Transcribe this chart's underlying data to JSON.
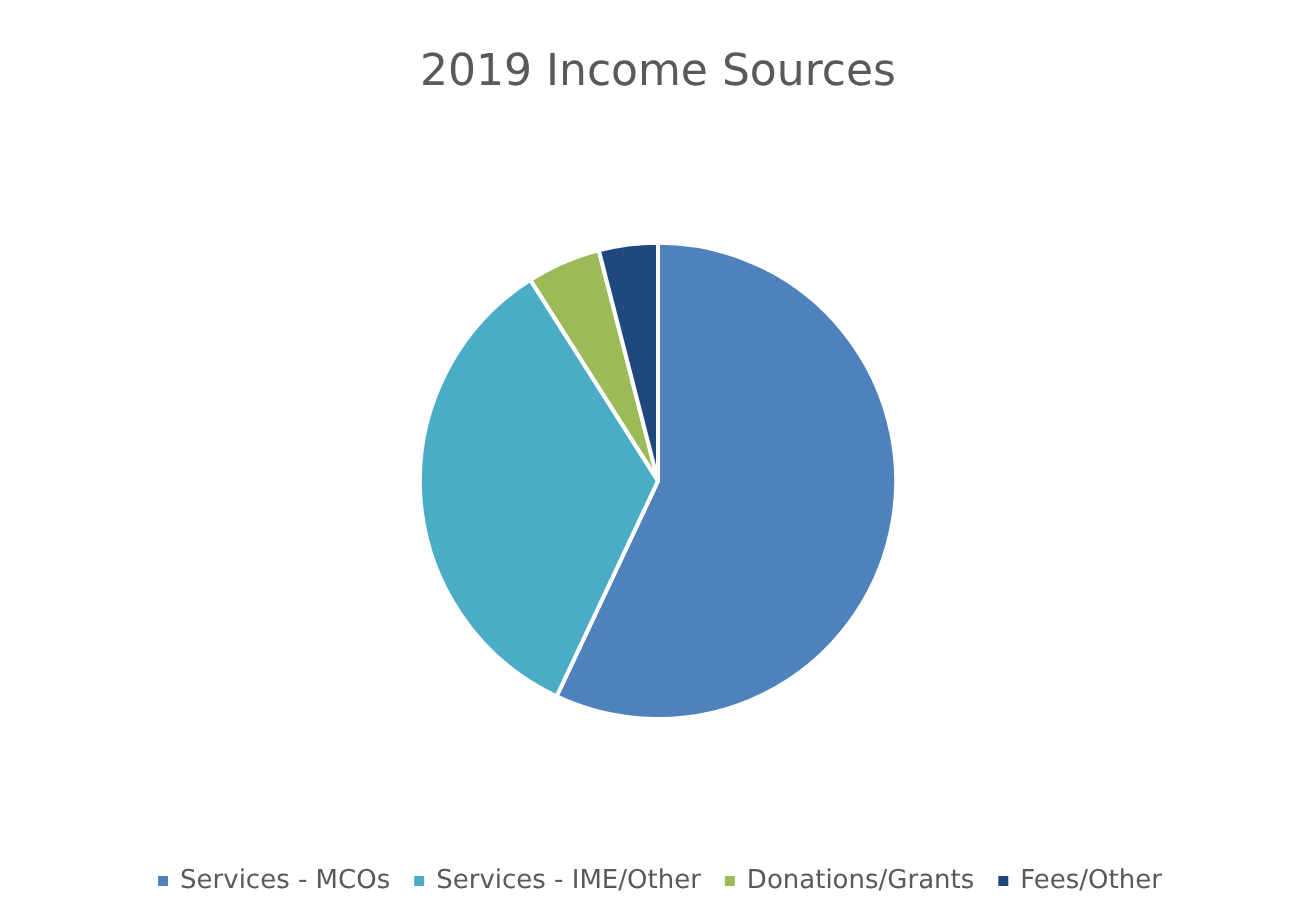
{
  "chart_data": {
    "type": "pie",
    "title": "2019 Income Sources",
    "categories": [
      "Services - MCOs",
      "Services - IME/Other",
      "Donations/Grants",
      "Fees/Other"
    ],
    "values": [
      57,
      34,
      5,
      4
    ],
    "colors": [
      "#4f81bd",
      "#4bacc6",
      "#9bbb59",
      "#1f497d"
    ],
    "legend": "bottom"
  }
}
